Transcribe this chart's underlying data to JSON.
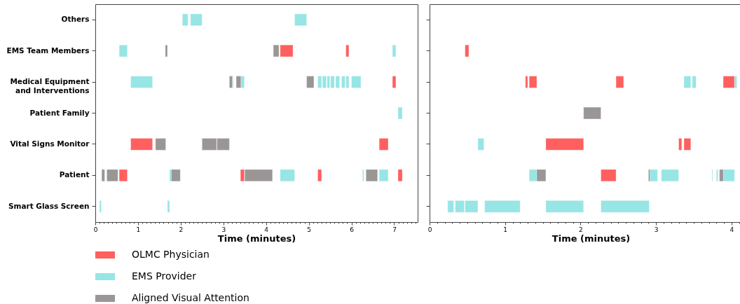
{
  "chart_data": [
    {
      "type": "bar",
      "orientation": "horizontal",
      "legend": "bottom",
      "grid": false,
      "xlabel": "Time (minutes)",
      "categories": [
        "Others",
        "EMS Team Members",
        "Medical Equipment\nand Interventions",
        "Patient Family",
        "Vital Signs Monitor",
        "Patient",
        "Smart Glass Screen"
      ],
      "xlim": [
        0,
        7.55
      ],
      "xticks": [
        0,
        {
          "value": 0.1,
          "label": null
        },
        {
          "value": 0.2,
          "label": null
        },
        {
          "value": 0.3,
          "label": null
        },
        {
          "value": 0.4,
          "label": null
        },
        {
          "value": 0.5,
          "label": null
        },
        {
          "value": 0.6,
          "label": null
        },
        {
          "value": 0.7,
          "label": null
        },
        {
          "value": 0.8,
          "label": null
        },
        {
          "value": 0.9,
          "label": null
        },
        1,
        {
          "value": 1.1,
          "label": null
        },
        {
          "value": 1.2,
          "label": null
        },
        {
          "value": 1.3,
          "label": null
        },
        {
          "value": 1.4,
          "label": null
        },
        {
          "value": 1.5,
          "label": null
        },
        {
          "value": 1.6,
          "label": null
        },
        {
          "value": 1.7,
          "label": null
        },
        {
          "value": 1.8,
          "label": null
        },
        {
          "value": 1.9,
          "label": null
        },
        2,
        {
          "value": 2.1,
          "label": null
        },
        {
          "value": 2.2,
          "label": null
        },
        {
          "value": 2.3,
          "label": null
        },
        {
          "value": 2.4,
          "label": null
        },
        {
          "value": 2.5,
          "label": null
        },
        {
          "value": 2.6,
          "label": null
        },
        {
          "value": 2.7,
          "label": null
        },
        {
          "value": 2.8,
          "label": null
        },
        {
          "value": 2.9,
          "label": null
        },
        3,
        {
          "value": 3.1,
          "label": null
        },
        {
          "value": 3.2,
          "label": null
        },
        {
          "value": 3.3,
          "label": null
        },
        {
          "value": 3.4,
          "label": null
        },
        {
          "value": 3.5,
          "label": null
        },
        {
          "value": 3.6,
          "label": null
        },
        {
          "value": 3.7,
          "label": null
        },
        {
          "value": 3.8,
          "label": null
        },
        {
          "value": 3.9,
          "label": null
        },
        4,
        {
          "value": 4.1,
          "label": null
        },
        {
          "value": 4.2,
          "label": null
        },
        {
          "value": 4.3,
          "label": null
        },
        {
          "value": 4.4,
          "label": null
        },
        {
          "value": 4.5,
          "label": null
        },
        {
          "value": 4.6,
          "label": null
        },
        {
          "value": 4.7,
          "label": null
        },
        {
          "value": 4.8,
          "label": null
        },
        {
          "value": 4.9,
          "label": null
        },
        5,
        {
          "value": 5.1,
          "label": null
        },
        {
          "value": 5.2,
          "label": null
        },
        {
          "value": 5.3,
          "label": null
        },
        {
          "value": 5.4,
          "label": null
        },
        {
          "value": 5.5,
          "label": null
        },
        {
          "value": 5.6,
          "label": null
        },
        {
          "value": 5.7,
          "label": null
        },
        {
          "value": 5.8,
          "label": null
        },
        {
          "value": 5.9,
          "label": null
        },
        6,
        {
          "value": 6.1,
          "label": null
        },
        {
          "value": 6.2,
          "label": null
        },
        {
          "value": 6.3,
          "label": null
        },
        {
          "value": 6.4,
          "label": null
        },
        {
          "value": 6.5,
          "label": null
        },
        {
          "value": 6.6,
          "label": null
        },
        {
          "value": 6.7,
          "label": null
        },
        {
          "value": 6.8,
          "label": null
        },
        {
          "value": 6.9,
          "label": null
        },
        7,
        {
          "value": 7.1,
          "label": null
        },
        {
          "value": 7.2,
          "label": null
        },
        {
          "value": 7.3,
          "label": null
        },
        {
          "value": 7.4,
          "label": null
        },
        {
          "value": 7.5,
          "label": null
        }
      ],
      "series": [
        {
          "name": "OLMC Physician",
          "color": "#ff5f5f",
          "base": [
            null,
            4.33,
            6.96,
            null,
            0.83,
            0.56,
            null
          ],
          "values": [
            null,
            0.3,
            0.08,
            null,
            0.51,
            0.19,
            null
          ]
        },
        {
          "color": "#ff5f5f",
          "base": [
            null,
            5.87,
            null,
            null,
            6.65,
            3.4,
            null
          ],
          "values": [
            null,
            0.07,
            null,
            null,
            0.21,
            0.09,
            null
          ]
        },
        {
          "color": "#ff5f5f",
          "base": [
            null,
            null,
            null,
            null,
            null,
            5.21,
            null
          ],
          "values": [
            null,
            null,
            null,
            null,
            null,
            0.09,
            null
          ]
        },
        {
          "color": "#ff5f5f",
          "base": [
            null,
            null,
            null,
            null,
            null,
            7.09,
            null
          ],
          "values": [
            null,
            null,
            null,
            null,
            null,
            0.1,
            null
          ]
        },
        {
          "name": "EMS Provider",
          "color": "#98e5e5",
          "base": [
            2.04,
            0.56,
            0.83,
            7.09,
            null,
            1.74,
            0.1
          ],
          "values": [
            0.13,
            0.19,
            0.51,
            0.1,
            null,
            0.04,
            0.04
          ]
        },
        {
          "color": "#98e5e5",
          "base": [
            2.23,
            6.96,
            3.21,
            null,
            null,
            4.33,
            1.69
          ],
          "values": [
            0.27,
            0.08,
            0.02,
            null,
            null,
            0.34,
            0.05
          ]
        },
        {
          "color": "#98e5e5",
          "base": [
            4.67,
            null,
            3.41,
            null,
            null,
            6.26,
            null
          ],
          "values": [
            0.28,
            null,
            0.08,
            null,
            null,
            0.03,
            null
          ]
        },
        {
          "color": "#98e5e5",
          "base": [
            null,
            null,
            5.21,
            null,
            null,
            6.65,
            null
          ],
          "values": [
            null,
            null,
            0.09,
            null,
            null,
            0.21,
            null
          ]
        },
        {
          "color": "#98e5e5",
          "base": [
            null,
            null,
            5.32,
            null,
            null,
            null,
            null
          ],
          "values": [
            null,
            null,
            0.09,
            null,
            null,
            null,
            null
          ]
        },
        {
          "color": "#98e5e5",
          "base": [
            null,
            null,
            5.43,
            null,
            null,
            null,
            null
          ],
          "values": [
            null,
            null,
            0.06,
            null,
            null,
            null,
            null
          ]
        },
        {
          "color": "#98e5e5",
          "base": [
            null,
            null,
            5.51,
            null,
            null,
            null,
            null
          ],
          "values": [
            null,
            null,
            0.09,
            null,
            null,
            null,
            null
          ]
        },
        {
          "color": "#98e5e5",
          "base": [
            null,
            null,
            5.63,
            null,
            null,
            null,
            null
          ],
          "values": [
            null,
            null,
            0.09,
            null,
            null,
            null,
            null
          ]
        },
        {
          "color": "#98e5e5",
          "base": [
            null,
            null,
            5.77,
            null,
            null,
            null,
            null
          ],
          "values": [
            null,
            null,
            0.08,
            null,
            null,
            null,
            null
          ]
        },
        {
          "color": "#98e5e5",
          "base": [
            null,
            null,
            5.87,
            null,
            null,
            null,
            null
          ],
          "values": [
            null,
            null,
            0.07,
            null,
            null,
            null,
            null
          ]
        },
        {
          "color": "#98e5e5",
          "base": [
            null,
            null,
            6.0,
            null,
            null,
            null,
            null
          ],
          "values": [
            null,
            null,
            0.22,
            null,
            null,
            null,
            null
          ]
        },
        {
          "name": "Aligned Visual Attention",
          "color": "#9b9696",
          "base": [
            null,
            1.64,
            3.14,
            null,
            1.41,
            0.15,
            null
          ],
          "values": [
            null,
            0.05,
            0.07,
            null,
            0.24,
            0.07,
            null
          ]
        },
        {
          "color": "#9b9696",
          "base": [
            null,
            4.17,
            3.3,
            null,
            2.5,
            0.27,
            null
          ],
          "values": [
            null,
            0.13,
            0.11,
            null,
            0.34,
            0.26,
            null
          ]
        },
        {
          "color": "#9b9696",
          "base": [
            null,
            null,
            4.95,
            null,
            2.85,
            1.78,
            null
          ],
          "values": [
            null,
            null,
            0.17,
            null,
            0.29,
            0.21,
            null
          ]
        },
        {
          "color": "#9b9696",
          "base": [
            null,
            null,
            null,
            null,
            null,
            3.5,
            null
          ],
          "values": [
            null,
            null,
            null,
            null,
            null,
            0.65,
            null
          ]
        },
        {
          "color": "#9b9696",
          "base": [
            null,
            null,
            null,
            null,
            null,
            6.34,
            null
          ],
          "values": [
            null,
            null,
            null,
            null,
            null,
            0.27,
            null
          ]
        }
      ]
    },
    {
      "type": "bar",
      "orientation": "horizontal",
      "legend": "bottom",
      "grid": false,
      "xlabel": "Time (minutes)",
      "tick_labels": "x",
      "categories": [
        null,
        null,
        null,
        null,
        null,
        null,
        null
      ],
      "xlim": [
        0,
        4.27
      ],
      "xticks": [
        0,
        {
          "value": 0.1,
          "label": null
        },
        {
          "value": 0.2,
          "label": null
        },
        {
          "value": 0.3,
          "label": null
        },
        {
          "value": 0.4,
          "label": null
        },
        {
          "value": 0.5,
          "label": null
        },
        {
          "value": 0.6,
          "label": null
        },
        {
          "value": 0.7,
          "label": null
        },
        {
          "value": 0.8,
          "label": null
        },
        {
          "value": 0.9,
          "label": null
        },
        1,
        {
          "value": 1.1,
          "label": null
        },
        {
          "value": 1.2,
          "label": null
        },
        {
          "value": 1.3,
          "label": null
        },
        {
          "value": 1.4,
          "label": null
        },
        {
          "value": 1.5,
          "label": null
        },
        {
          "value": 1.6,
          "label": null
        },
        {
          "value": 1.7,
          "label": null
        },
        {
          "value": 1.8,
          "label": null
        },
        {
          "value": 1.9,
          "label": null
        },
        2,
        {
          "value": 2.1,
          "label": null
        },
        {
          "value": 2.2,
          "label": null
        },
        {
          "value": 2.3,
          "label": null
        },
        {
          "value": 2.4,
          "label": null
        },
        {
          "value": 2.5,
          "label": null
        },
        {
          "value": 2.6,
          "label": null
        },
        {
          "value": 2.7,
          "label": null
        },
        {
          "value": 2.8,
          "label": null
        },
        {
          "value": 2.9,
          "label": null
        },
        3,
        {
          "value": 3.1,
          "label": null
        },
        {
          "value": 3.2,
          "label": null
        },
        {
          "value": 3.3,
          "label": null
        },
        {
          "value": 3.4,
          "label": null
        },
        {
          "value": 3.5,
          "label": null
        },
        {
          "value": 3.6,
          "label": null
        },
        {
          "value": 3.7,
          "label": null
        },
        {
          "value": 3.8,
          "label": null
        },
        {
          "value": 3.9,
          "label": null
        },
        4,
        {
          "value": 4.1,
          "label": null
        },
        {
          "value": 4.2,
          "label": null
        }
      ],
      "series": [
        {
          "name": "OLMC Physician",
          "color": "#ff5f5f",
          "base": [
            null,
            0.47,
            1.27,
            null,
            1.54,
            2.27,
            null
          ],
          "values": [
            null,
            0.05,
            0.03,
            null,
            0.5,
            0.2,
            null
          ]
        },
        {
          "color": "#ff5f5f",
          "base": [
            null,
            null,
            1.32,
            null,
            3.3,
            null,
            null
          ],
          "values": [
            null,
            null,
            0.1,
            null,
            0.04,
            null,
            null
          ]
        },
        {
          "color": "#ff5f5f",
          "base": [
            null,
            null,
            2.47,
            null,
            3.37,
            null,
            null
          ],
          "values": [
            null,
            null,
            0.1,
            null,
            0.09,
            null,
            null
          ]
        },
        {
          "color": "#ff5f5f",
          "base": [
            null,
            null,
            3.89,
            null,
            null,
            null,
            null
          ],
          "values": [
            null,
            null,
            0.15,
            null,
            null,
            null,
            null
          ]
        },
        {
          "name": "EMS Provider",
          "color": "#98e5e5",
          "base": [
            null,
            null,
            3.37,
            null,
            0.64,
            1.32,
            0.24
          ],
          "values": [
            null,
            null,
            0.09,
            null,
            0.08,
            0.1,
            0.08
          ]
        },
        {
          "color": "#98e5e5",
          "base": [
            null,
            null,
            3.48,
            null,
            null,
            2.92,
            0.34
          ],
          "values": [
            null,
            null,
            0.05,
            null,
            null,
            0.1,
            0.12
          ]
        },
        {
          "color": "#98e5e5",
          "base": [
            null,
            null,
            4.04,
            null,
            null,
            3.07,
            0.47
          ],
          "values": [
            null,
            null,
            0.03,
            null,
            null,
            0.23,
            0.17
          ]
        },
        {
          "color": "#98e5e5",
          "base": [
            null,
            null,
            null,
            null,
            null,
            3.74,
            0.73
          ],
          "values": [
            null,
            null,
            null,
            null,
            null,
            0.01,
            0.47
          ]
        },
        {
          "color": "#98e5e5",
          "base": [
            null,
            null,
            null,
            null,
            null,
            3.8,
            1.54
          ],
          "values": [
            null,
            null,
            null,
            null,
            null,
            0.02,
            0.5
          ]
        },
        {
          "color": "#98e5e5",
          "base": [
            null,
            null,
            null,
            null,
            null,
            3.89,
            2.27
          ],
          "values": [
            null,
            null,
            null,
            null,
            null,
            0.15,
            0.64
          ]
        },
        {
          "name": "Aligned Visual Attention",
          "color": "#9b9696",
          "base": [
            null,
            null,
            null,
            2.04,
            null,
            1.42,
            null
          ],
          "values": [
            null,
            null,
            null,
            0.23,
            null,
            0.12,
            null
          ]
        },
        {
          "color": "#9b9696",
          "base": [
            null,
            null,
            null,
            null,
            null,
            2.9,
            null
          ],
          "values": [
            null,
            null,
            null,
            null,
            null,
            0.02,
            null
          ]
        },
        {
          "color": "#9b9696",
          "base": [
            null,
            null,
            null,
            null,
            null,
            3.84,
            null
          ],
          "values": [
            null,
            null,
            null,
            null,
            null,
            0.05,
            null
          ]
        }
      ]
    }
  ]
}
